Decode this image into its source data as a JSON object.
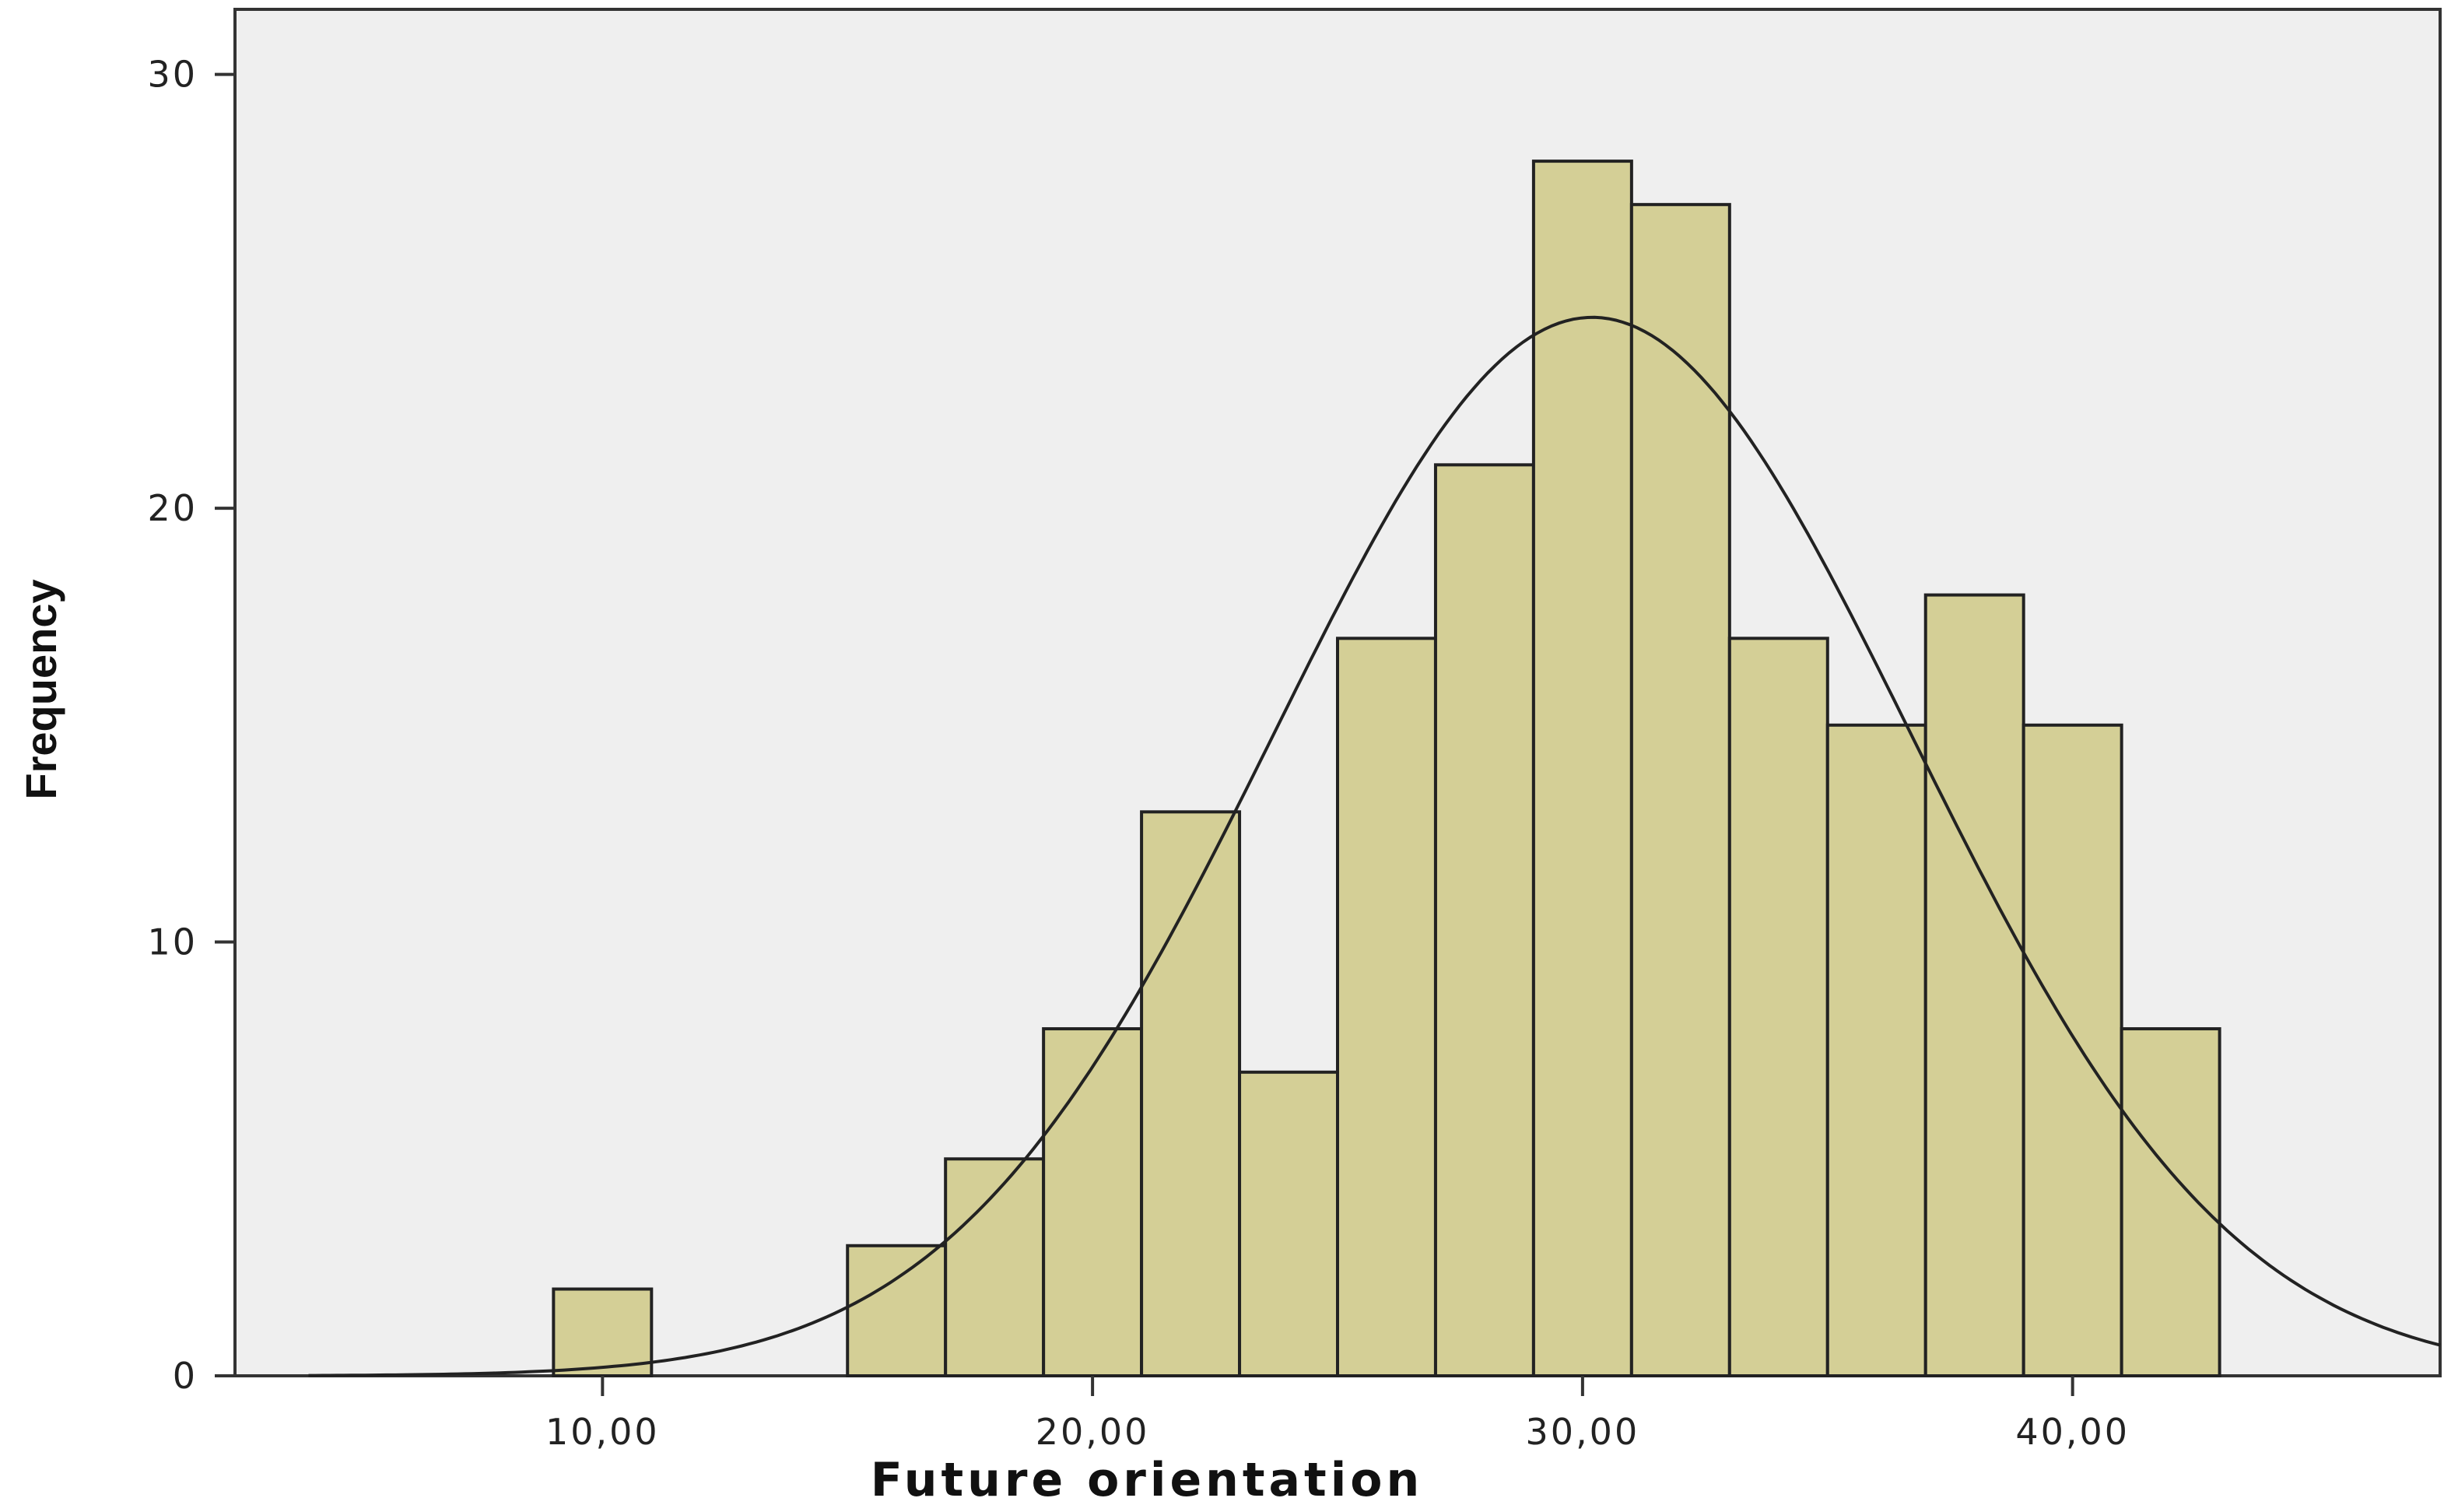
{
  "chart_data": {
    "type": "bar",
    "subtype": "histogram",
    "xlabel": "Future orientation",
    "ylabel": "Frequency",
    "bin_width": 2,
    "bin_starts": [
      9,
      15,
      17,
      19,
      21,
      23,
      25,
      27,
      29,
      31,
      33,
      35,
      37,
      39,
      41
    ],
    "values": [
      2,
      3,
      5,
      8,
      13,
      7,
      17,
      21,
      28,
      27,
      17,
      15,
      18,
      15,
      8
    ],
    "xlim": [
      2.5,
      47.5
    ],
    "ylim": [
      0,
      31.5
    ],
    "x_ticks": [
      10,
      20,
      30,
      40
    ],
    "x_tick_labels": [
      "10,00",
      "20,00",
      "30,00",
      "40,00"
    ],
    "y_ticks": [
      0,
      10,
      20,
      30
    ],
    "y_tick_labels": [
      "0",
      "10",
      "20",
      "30"
    ],
    "normal_curve": {
      "mean": 30.2,
      "sd": 6.5,
      "peak": 24.4
    },
    "grid": false,
    "colors": {
      "bar_fill": "#d4cf96",
      "bar_stroke": "#222222",
      "plot_background": "#efefef",
      "curve": "#222222"
    }
  }
}
